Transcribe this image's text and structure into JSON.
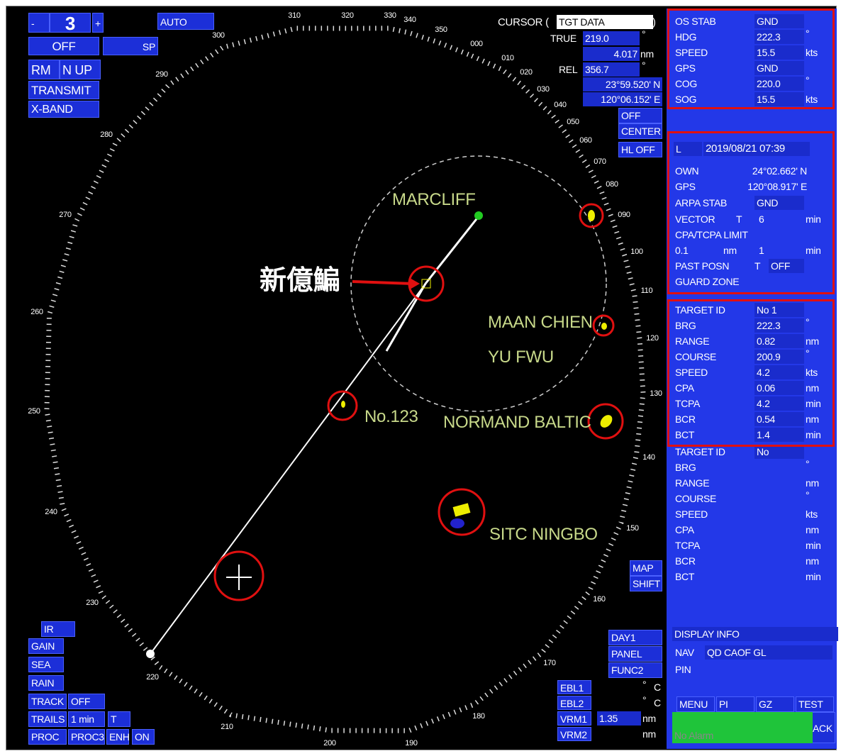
{
  "top_left": {
    "range_minus": "-",
    "range": "3",
    "range_plus": "+",
    "gain_mode": "AUTO",
    "off": "OFF",
    "pulse": "SP",
    "motion": "RM",
    "orientation": "N UP",
    "status": "TRANSMIT",
    "band": "X-BAND"
  },
  "cursor": {
    "title": "CURSOR (",
    "mode": "TGT DATA",
    "close": ")",
    "true_label": "TRUE",
    "true_bearing": "219.0",
    "true_bearing_unit": "°",
    "range": "4.017",
    "range_unit": "nm",
    "rel_label": "REL",
    "rel_bearing": "356.7",
    "rel_bearing_unit": "°",
    "latitude": "23°59.520' N",
    "longitude": "120°06.152' E"
  },
  "controls": {
    "off_center": [
      "OFF",
      "CENTER"
    ],
    "hl": "HL OFF",
    "map_shift": [
      "MAP",
      "SHIFT"
    ],
    "day": "DAY1",
    "panel": "PANEL",
    "func": "FUNC2"
  },
  "ebl_vrm": [
    {
      "label": "EBL1",
      "unit": "°",
      "mode": "C"
    },
    {
      "label": "EBL2",
      "unit": "°",
      "mode": "C"
    },
    {
      "label": "VRM1",
      "value": "1.35",
      "unit": "nm"
    },
    {
      "label": "VRM2",
      "unit": "nm"
    }
  ],
  "bottom_left": {
    "ir": "IR",
    "gain": "GAIN",
    "sea": "SEA",
    "rain": "RAIN",
    "track": [
      "TRACK",
      "OFF"
    ],
    "trails": [
      "TRAILS",
      "1 min",
      "T"
    ],
    "proc": [
      "PROC",
      "PROC3",
      "ENH",
      "ON"
    ]
  },
  "bearing_scale": [
    "000",
    "010",
    "020",
    "030",
    "040",
    "050",
    "060",
    "070",
    "080",
    "090",
    "100",
    "110",
    "120",
    "130",
    "140",
    "150",
    "160",
    "170",
    "180",
    "190",
    "200",
    "210",
    "220",
    "230",
    "240",
    "250",
    "260",
    "270",
    "280",
    "290",
    "300",
    "310",
    "320",
    "330",
    "340",
    "350"
  ],
  "annotation": "新億鯿",
  "targets": [
    "MARCLIFF",
    "MAAN CHIEN",
    "YU FWU",
    "No.123",
    "NORMAND BALTIC",
    "SITC NINGBO"
  ],
  "own_ship": [
    {
      "label": "OS STAB",
      "value": "GND"
    },
    {
      "label": "HDG",
      "value": "222.3",
      "unit": "°"
    },
    {
      "label": "SPEED",
      "value": "15.5",
      "unit": "kts"
    },
    {
      "label": "GPS",
      "value": "GND"
    },
    {
      "label": "COG",
      "value": "220.0",
      "unit": "°"
    },
    {
      "label": "SOG",
      "value": "15.5",
      "unit": "kts"
    }
  ],
  "nav_info": {
    "date_prefix": "L",
    "datetime": "2019/08/21 07:39",
    "own_label": "OWN",
    "own_lat": "24°02.662' N",
    "gps_label": "GPS",
    "gps_lon": "120°08.917' E",
    "arpa_stab": [
      "ARPA STAB",
      "GND"
    ],
    "vector": [
      "VECTOR",
      "T",
      "6",
      "min"
    ],
    "cpa_tcpa_limit": "CPA/TCPA LIMIT",
    "limits": [
      "0.1",
      "nm",
      "1",
      "min"
    ],
    "past_posn": [
      "PAST POSN",
      "T",
      "OFF"
    ],
    "guard_zone": "GUARD ZONE"
  },
  "target_data": [
    [
      {
        "label": "TARGET ID",
        "value": "No 1"
      },
      {
        "label": "BRG",
        "value": "222.3",
        "unit": "°"
      },
      {
        "label": "RANGE",
        "value": "0.82",
        "unit": "nm"
      },
      {
        "label": "COURSE",
        "value": "200.9",
        "unit": "°"
      },
      {
        "label": "SPEED",
        "value": "4.2",
        "unit": "kts"
      },
      {
        "label": "CPA",
        "value": "0.06",
        "unit": "nm"
      },
      {
        "label": "TCPA",
        "value": "4.2",
        "unit": "min"
      },
      {
        "label": "BCR",
        "value": "0.54",
        "unit": "nm"
      },
      {
        "label": "BCT",
        "value": "1.4",
        "unit": "min"
      }
    ],
    [
      {
        "label": "TARGET ID",
        "value": "No"
      },
      {
        "label": "BRG",
        "unit": "°"
      },
      {
        "label": "RANGE",
        "unit": "nm"
      },
      {
        "label": "COURSE",
        "unit": "°"
      },
      {
        "label": "SPEED",
        "unit": "kts"
      },
      {
        "label": "CPA",
        "unit": "nm"
      },
      {
        "label": "TCPA",
        "unit": "min"
      },
      {
        "label": "BCR",
        "unit": "nm"
      },
      {
        "label": "BCT",
        "unit": "min"
      }
    ]
  ],
  "display_info": {
    "title": "DISPLAY INFO",
    "nav": [
      "NAV",
      "QD CAOF GL"
    ],
    "pin": "PIN"
  },
  "menu": [
    "MENU",
    "PI",
    "GZ",
    "TEST"
  ],
  "ack": "ACK",
  "alarm": "No Alarm"
}
